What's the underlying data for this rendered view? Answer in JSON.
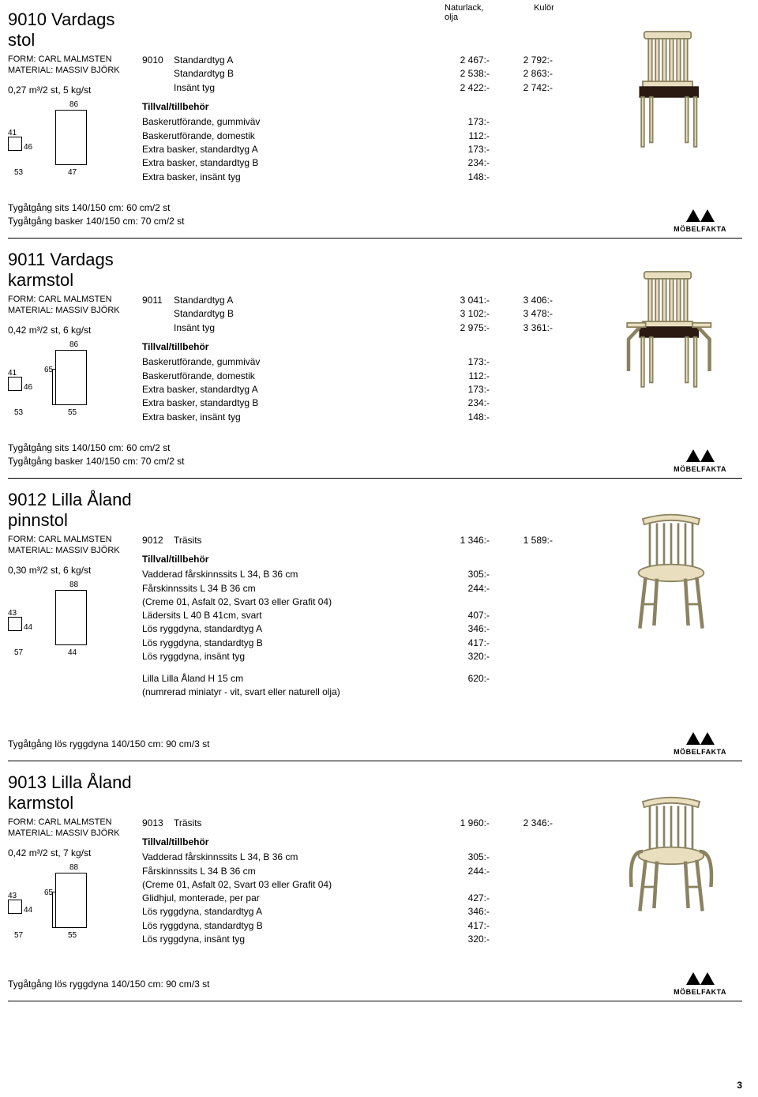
{
  "header": {
    "col1a": "Naturlack,",
    "col1b": "olja",
    "col2": "Kulör"
  },
  "page_number": "3",
  "mobelfakta_label": "MÖBELFAKTA",
  "colors": {
    "wood": "#e9dfbf",
    "seat_dark": "#2a1a12",
    "stroke": "#8a8260"
  },
  "sections": [
    {
      "id": "9010",
      "title": "9010 Vardags stol",
      "form": "FORM: CARL MALMSTEN",
      "material": "MATERIAL: MASSIV BJÖRK",
      "spec": "0,27 m³/2 st, 5 kg/st",
      "dims": {
        "h": "86",
        "a": "41",
        "b": "46",
        "c": "53",
        "d": "47"
      },
      "has_arms": false,
      "chair_type": "slatback_dark",
      "code": "9010",
      "prices": [
        {
          "label": "Standardtyg A",
          "c1": "2 467:-",
          "c2": "2 792:-"
        },
        {
          "label": "Standardtyg B",
          "c1": "2 538:-",
          "c2": "2 863:-"
        },
        {
          "label": "Insänt tyg",
          "c1": "2 422:-",
          "c2": "2 742:-"
        }
      ],
      "opt_header": "Tillval/tillbehör",
      "options": [
        {
          "label": "Baskerutförande, gummiväv",
          "p": "173:-"
        },
        {
          "label": "Baskerutförande, domestik",
          "p": "112:-"
        },
        {
          "label": "Extra basker, standardtyg A",
          "p": "173:-"
        },
        {
          "label": "Extra basker, standardtyg B",
          "p": "234:-"
        },
        {
          "label": "Extra basker, insänt tyg",
          "p": "148:-"
        }
      ],
      "footnotes": [
        "Tygåtgång sits 140/150 cm: 60 cm/2 st",
        "Tygåtgång basker 140/150 cm: 70 cm/2 st"
      ]
    },
    {
      "id": "9011",
      "title": "9011 Vardags karmstol",
      "form": "FORM: CARL MALMSTEN",
      "material": "MATERIAL: MASSIV BJÖRK",
      "spec": "0,42 m³/2 st, 6 kg/st",
      "dims": {
        "h": "86",
        "a": "41",
        "b": "46",
        "c": "53",
        "d": "55",
        "arm": "65"
      },
      "has_arms": true,
      "chair_type": "slatback_dark_arm",
      "code": "9011",
      "prices": [
        {
          "label": "Standardtyg A",
          "c1": "3 041:-",
          "c2": "3 406:-"
        },
        {
          "label": "Standardtyg B",
          "c1": "3 102:-",
          "c2": "3 478:-"
        },
        {
          "label": "Insänt tyg",
          "c1": "2 975:-",
          "c2": "3 361:-"
        }
      ],
      "opt_header": "Tillval/tillbehör",
      "options": [
        {
          "label": "Baskerutförande, gummiväv",
          "p": "173:-"
        },
        {
          "label": "Baskerutförande, domestik",
          "p": "112:-"
        },
        {
          "label": "Extra basker, standardtyg A",
          "p": "173:-"
        },
        {
          "label": "Extra basker, standardtyg B",
          "p": "234:-"
        },
        {
          "label": "Extra basker, insänt tyg",
          "p": "148:-"
        }
      ],
      "footnotes": [
        "Tygåtgång sits 140/150 cm: 60 cm/2 st",
        "Tygåtgång basker 140/150 cm: 70 cm/2 st"
      ]
    },
    {
      "id": "9012",
      "title": "9012 Lilla Åland pinnstol",
      "form": "FORM: CARL MALMSTEN",
      "material": "MATERIAL: MASSIV BJÖRK",
      "spec": "0,30 m³/2 st, 6 kg/st",
      "dims": {
        "h": "88",
        "a": "43",
        "b": "44",
        "c": "57",
        "d": "44"
      },
      "has_arms": false,
      "chair_type": "spindle",
      "code": "9012",
      "prices": [
        {
          "label": "Träsits",
          "c1": "1 346:-",
          "c2": "1 589:-"
        }
      ],
      "opt_header": "Tillval/tillbehör",
      "options": [
        {
          "label": "Vadderad fårskinnssits L 34, B 36 cm",
          "p": "305:-"
        },
        {
          "label": "Fårskinnssits L 34 B 36 cm",
          "p": "244:-"
        },
        {
          "note": "(Creme 01, Asfalt 02, Svart 03 eller Grafit 04)"
        },
        {
          "label": "Lädersits L 40 B 41cm, svart",
          "p": "407:-"
        },
        {
          "label": "Lös ryggdyna, standardtyg A",
          "p": "346:-"
        },
        {
          "label": "Lös ryggdyna, standardtyg B",
          "p": "417:-"
        },
        {
          "label": "Lös ryggdyna, insänt tyg",
          "p": "320:-"
        }
      ],
      "extra_block": [
        {
          "label": "Lilla Lilla Åland H 15 cm",
          "p": "620:-"
        },
        {
          "note": "(numrerad miniatyr - vit, svart eller naturell olja)"
        }
      ],
      "footnotes": [
        "Tygåtgång lös ryggdyna 140/150 cm: 90 cm/3 st"
      ]
    },
    {
      "id": "9013",
      "title": "9013 Lilla Åland karmstol",
      "form": "FORM: CARL MALMSTEN",
      "material": "MATERIAL: MASSIV BJÖRK",
      "spec": "0,42 m³/2 st, 7 kg/st",
      "dims": {
        "h": "88",
        "a": "43",
        "b": "44",
        "c": "57",
        "d": "55",
        "arm": "65"
      },
      "has_arms": true,
      "chair_type": "spindle_arm",
      "code": "9013",
      "prices": [
        {
          "label": "Träsits",
          "c1": "1 960:-",
          "c2": "2 346:-"
        }
      ],
      "opt_header": "Tillval/tillbehör",
      "options": [
        {
          "label": "Vadderad fårskinnssits L 34, B 36 cm",
          "p": "305:-"
        },
        {
          "label": "Fårskinnssits L 34 B 36 cm",
          "p": "244:-"
        },
        {
          "note": "(Creme 01, Asfalt 02, Svart 03 eller Grafit 04)"
        },
        {
          "label": "Glidhjul, monterade, per par",
          "p": "427:-"
        },
        {
          "label": "Lös ryggdyna, standardtyg A",
          "p": "346:-"
        },
        {
          "label": "Lös ryggdyna, standardtyg B",
          "p": "417:-"
        },
        {
          "label": "Lös ryggdyna, insänt tyg",
          "p": "320:-"
        }
      ],
      "footnotes": [
        "Tygåtgång lös ryggdyna 140/150 cm: 90 cm/3 st"
      ]
    }
  ]
}
